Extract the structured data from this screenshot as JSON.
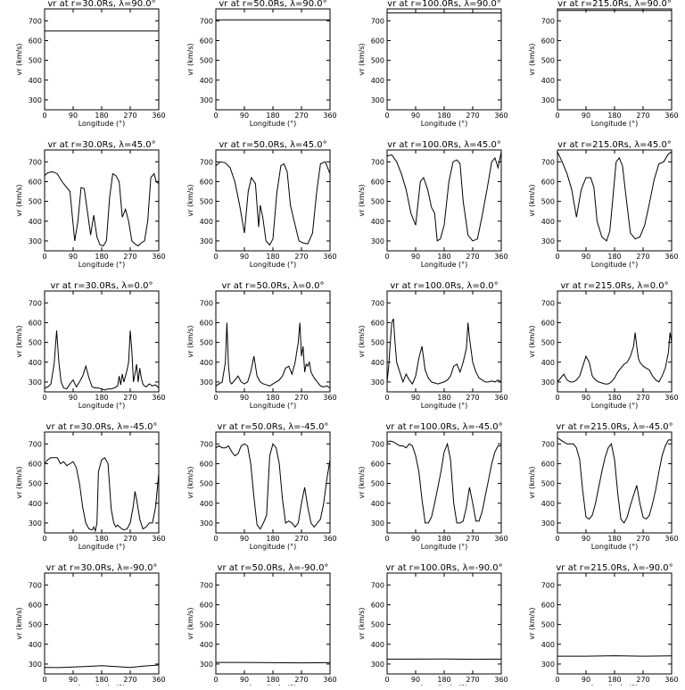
{
  "chart_data": {
    "type": "line",
    "layout": "5x4 grid of panels",
    "xlabel": "Longitude (°)",
    "ylabel": "vr (km/s)",
    "xlim": [
      0,
      360
    ],
    "ylim": [
      250,
      760
    ],
    "xticks": [
      "0",
      "90",
      "180",
      "270",
      "360"
    ],
    "yticks": [
      "300",
      "400",
      "500",
      "600",
      "700"
    ],
    "panels": [
      {
        "title": "vr at r=30.0Rs, λ=90.0°",
        "x": [
          0,
          360
        ],
        "y": [
          648,
          648
        ]
      },
      {
        "title": "vr at r=50.0Rs, λ=90.0°",
        "x": [
          0,
          360
        ],
        "y": [
          705,
          705
        ]
      },
      {
        "title": "vr at r=100.0Rs, λ=90.0°",
        "x": [
          0,
          360
        ],
        "y": [
          740,
          740
        ]
      },
      {
        "title": "vr at r=215.0Rs, λ=90.0°",
        "x": [
          0,
          360
        ],
        "y": [
          752,
          752
        ]
      },
      {
        "title": "vr at r=30.0Rs, λ=45.0°",
        "x": [
          0,
          10,
          25,
          40,
          55,
          65,
          80,
          95,
          105,
          115,
          125,
          135,
          145,
          155,
          165,
          175,
          185,
          195,
          205,
          215,
          225,
          235,
          245,
          255,
          265,
          275,
          285,
          295,
          305,
          315,
          325,
          335,
          345,
          352,
          360
        ],
        "y": [
          630,
          645,
          650,
          640,
          600,
          580,
          550,
          300,
          400,
          570,
          565,
          450,
          330,
          430,
          320,
          280,
          275,
          300,
          520,
          640,
          630,
          600,
          420,
          460,
          400,
          300,
          285,
          275,
          290,
          300,
          400,
          620,
          640,
          600,
          590
        ]
      },
      {
        "title": "vr at r=50.0Rs, λ=45.0°",
        "x": [
          0,
          15,
          30,
          45,
          60,
          75,
          90,
          102,
          112,
          125,
          135,
          140,
          148,
          158,
          170,
          180,
          192,
          205,
          215,
          225,
          235,
          250,
          262,
          275,
          290,
          305,
          318,
          330,
          345,
          360
        ],
        "y": [
          680,
          700,
          695,
          670,
          600,
          480,
          340,
          550,
          620,
          590,
          370,
          480,
          420,
          300,
          280,
          310,
          540,
          680,
          690,
          650,
          480,
          380,
          300,
          290,
          285,
          340,
          550,
          690,
          700,
          640
        ]
      },
      {
        "title": "vr at r=100.0Rs, λ=45.0°",
        "x": [
          0,
          15,
          30,
          45,
          60,
          75,
          90,
          105,
          115,
          128,
          140,
          150,
          158,
          168,
          180,
          195,
          208,
          220,
          230,
          240,
          255,
          270,
          285,
          300,
          315,
          330,
          340,
          350,
          360
        ],
        "y": [
          730,
          735,
          700,
          640,
          560,
          440,
          380,
          600,
          620,
          560,
          470,
          440,
          300,
          310,
          380,
          600,
          700,
          710,
          690,
          500,
          330,
          300,
          310,
          430,
          560,
          700,
          720,
          670,
          750
        ]
      },
      {
        "title": "vr at r=215.0Rs, λ=45.0°",
        "x": [
          0,
          15,
          30,
          45,
          60,
          75,
          90,
          105,
          115,
          125,
          140,
          155,
          165,
          175,
          185,
          195,
          205,
          218,
          230,
          245,
          260,
          275,
          290,
          305,
          320,
          335,
          350,
          360
        ],
        "y": [
          750,
          700,
          640,
          560,
          420,
          560,
          620,
          620,
          570,
          400,
          320,
          300,
          350,
          520,
          700,
          720,
          680,
          500,
          340,
          310,
          320,
          380,
          490,
          610,
          690,
          700,
          740,
          750
        ]
      },
      {
        "title": "vr at r=30.0Rs, λ=0.0°",
        "x": [
          0,
          10,
          20,
          30,
          38,
          45,
          52,
          60,
          70,
          80,
          90,
          100,
          110,
          120,
          130,
          140,
          150,
          160,
          170,
          180,
          190,
          200,
          210,
          220,
          230,
          235,
          240,
          245,
          250,
          255,
          260,
          265,
          270,
          275,
          280,
          285,
          290,
          295,
          300,
          305,
          310,
          315,
          320,
          330,
          340,
          350,
          360
        ],
        "y": [
          270,
          275,
          290,
          390,
          560,
          400,
          300,
          270,
          265,
          290,
          310,
          275,
          300,
          330,
          380,
          320,
          275,
          270,
          270,
          265,
          260,
          265,
          265,
          270,
          280,
          330,
          285,
          340,
          300,
          330,
          360,
          400,
          560,
          460,
          300,
          340,
          390,
          300,
          370,
          320,
          290,
          280,
          275,
          290,
          280,
          285,
          270
        ]
      },
      {
        "title": "vr at r=50.0Rs, λ=0.0°",
        "x": [
          0,
          10,
          20,
          30,
          35,
          40,
          45,
          50,
          60,
          70,
          80,
          90,
          100,
          110,
          120,
          130,
          140,
          150,
          160,
          170,
          180,
          190,
          200,
          210,
          220,
          230,
          240,
          250,
          260,
          265,
          270,
          275,
          280,
          285,
          290,
          295,
          300,
          310,
          320,
          330,
          340,
          350,
          360
        ],
        "y": [
          280,
          290,
          300,
          400,
          600,
          380,
          300,
          290,
          310,
          330,
          300,
          290,
          300,
          350,
          430,
          330,
          300,
          290,
          285,
          280,
          290,
          300,
          310,
          330,
          370,
          380,
          340,
          400,
          500,
          600,
          430,
          480,
          350,
          390,
          380,
          400,
          350,
          320,
          300,
          280,
          275,
          280,
          270
        ]
      },
      {
        "title": "vr at r=100.0Rs, λ=0.0°",
        "x": [
          0,
          5,
          10,
          15,
          20,
          25,
          30,
          40,
          50,
          60,
          70,
          80,
          90,
          100,
          110,
          120,
          130,
          140,
          150,
          160,
          170,
          180,
          190,
          200,
          210,
          220,
          230,
          240,
          250,
          255,
          260,
          265,
          270,
          280,
          290,
          300,
          310,
          320,
          330,
          340,
          350,
          360
        ],
        "y": [
          300,
          380,
          500,
          600,
          620,
          500,
          400,
          350,
          300,
          340,
          310,
          290,
          330,
          420,
          480,
          360,
          320,
          300,
          295,
          290,
          295,
          300,
          310,
          330,
          380,
          390,
          350,
          400,
          470,
          600,
          520,
          460,
          400,
          350,
          320,
          310,
          300,
          300,
          305,
          300,
          310,
          300
        ]
      },
      {
        "title": "vr at r=215.0Rs, λ=0.0°",
        "x": [
          0,
          10,
          20,
          30,
          40,
          50,
          60,
          70,
          80,
          90,
          100,
          110,
          120,
          130,
          140,
          150,
          160,
          170,
          180,
          190,
          200,
          210,
          220,
          230,
          240,
          245,
          250,
          255,
          260,
          270,
          280,
          290,
          300,
          310,
          320,
          330,
          340,
          350,
          355,
          360
        ],
        "y": [
          300,
          320,
          340,
          310,
          300,
          300,
          310,
          330,
          380,
          430,
          400,
          330,
          310,
          300,
          295,
          290,
          290,
          300,
          320,
          350,
          370,
          390,
          400,
          430,
          480,
          550,
          480,
          420,
          400,
          380,
          370,
          360,
          330,
          310,
          300,
          330,
          370,
          450,
          550,
          500
        ]
      },
      {
        "title": "vr at r=30.0Rs, λ=-45.0°",
        "x": [
          0,
          10,
          20,
          30,
          40,
          50,
          60,
          70,
          80,
          90,
          100,
          110,
          120,
          130,
          140,
          150,
          155,
          160,
          165,
          170,
          180,
          190,
          200,
          210,
          218,
          225,
          230,
          240,
          250,
          260,
          270,
          280,
          285,
          290,
          300,
          310,
          320,
          330,
          340,
          350,
          360
        ],
        "y": [
          600,
          620,
          630,
          630,
          630,
          600,
          610,
          590,
          600,
          610,
          580,
          500,
          380,
          300,
          270,
          265,
          280,
          260,
          300,
          560,
          620,
          630,
          600,
          370,
          300,
          280,
          290,
          275,
          265,
          270,
          300,
          390,
          460,
          420,
          320,
          270,
          280,
          300,
          300,
          380,
          550
        ]
      },
      {
        "title": "vr at r=50.0Rs, λ=-45.0°",
        "x": [
          0,
          10,
          20,
          30,
          40,
          50,
          60,
          70,
          80,
          90,
          100,
          110,
          120,
          130,
          140,
          150,
          160,
          170,
          180,
          190,
          200,
          210,
          220,
          230,
          240,
          250,
          260,
          270,
          280,
          290,
          300,
          310,
          320,
          330,
          340,
          350,
          360
        ],
        "y": [
          680,
          690,
          680,
          680,
          690,
          660,
          640,
          650,
          690,
          700,
          690,
          600,
          430,
          290,
          270,
          300,
          340,
          640,
          700,
          680,
          600,
          420,
          300,
          310,
          300,
          280,
          300,
          400,
          480,
          380,
          300,
          280,
          300,
          320,
          400,
          520,
          620
        ]
      },
      {
        "title": "vr at r=100.0Rs, λ=-45.0°",
        "x": [
          0,
          10,
          20,
          30,
          40,
          50,
          60,
          70,
          80,
          90,
          100,
          110,
          120,
          130,
          140,
          150,
          160,
          170,
          180,
          190,
          200,
          210,
          220,
          230,
          240,
          250,
          260,
          270,
          280,
          290,
          300,
          310,
          320,
          330,
          340,
          350,
          360
        ],
        "y": [
          710,
          715,
          710,
          700,
          690,
          690,
          680,
          700,
          690,
          640,
          560,
          420,
          300,
          300,
          330,
          400,
          480,
          560,
          660,
          700,
          620,
          400,
          300,
          300,
          310,
          380,
          480,
          400,
          310,
          310,
          360,
          440,
          520,
          600,
          660,
          690,
          690
        ]
      },
      {
        "title": "vr at r=215.0Rs, λ=-45.0°",
        "x": [
          0,
          10,
          20,
          30,
          40,
          50,
          60,
          70,
          80,
          90,
          100,
          110,
          120,
          130,
          140,
          150,
          160,
          170,
          180,
          190,
          200,
          210,
          220,
          230,
          240,
          250,
          260,
          270,
          280,
          290,
          300,
          310,
          320,
          330,
          340,
          350,
          360
        ],
        "y": [
          730,
          720,
          710,
          700,
          700,
          700,
          680,
          620,
          460,
          330,
          320,
          340,
          400,
          480,
          560,
          630,
          680,
          700,
          620,
          450,
          320,
          300,
          330,
          390,
          440,
          490,
          400,
          330,
          320,
          340,
          400,
          470,
          560,
          640,
          690,
          720,
          720
        ]
      },
      {
        "title": "vr at r=30.0Rs, λ=-90.0°",
        "x": [
          0,
          45,
          90,
          135,
          180,
          225,
          270,
          315,
          360
        ],
        "y": [
          283,
          282,
          285,
          288,
          292,
          287,
          283,
          290,
          295
        ]
      },
      {
        "title": "vr at r=50.0Rs, λ=-90.0°",
        "x": [
          0,
          90,
          180,
          270,
          360
        ],
        "y": [
          308,
          308,
          307,
          306,
          307
        ]
      },
      {
        "title": "vr at r=100.0Rs, λ=-90.0°",
        "x": [
          0,
          90,
          180,
          270,
          360
        ],
        "y": [
          325,
          325,
          326,
          324,
          325
        ]
      },
      {
        "title": "vr at r=215.0Rs, λ=-90.0°",
        "x": [
          0,
          90,
          180,
          270,
          360
        ],
        "y": [
          340,
          340,
          342,
          340,
          341
        ]
      }
    ]
  }
}
